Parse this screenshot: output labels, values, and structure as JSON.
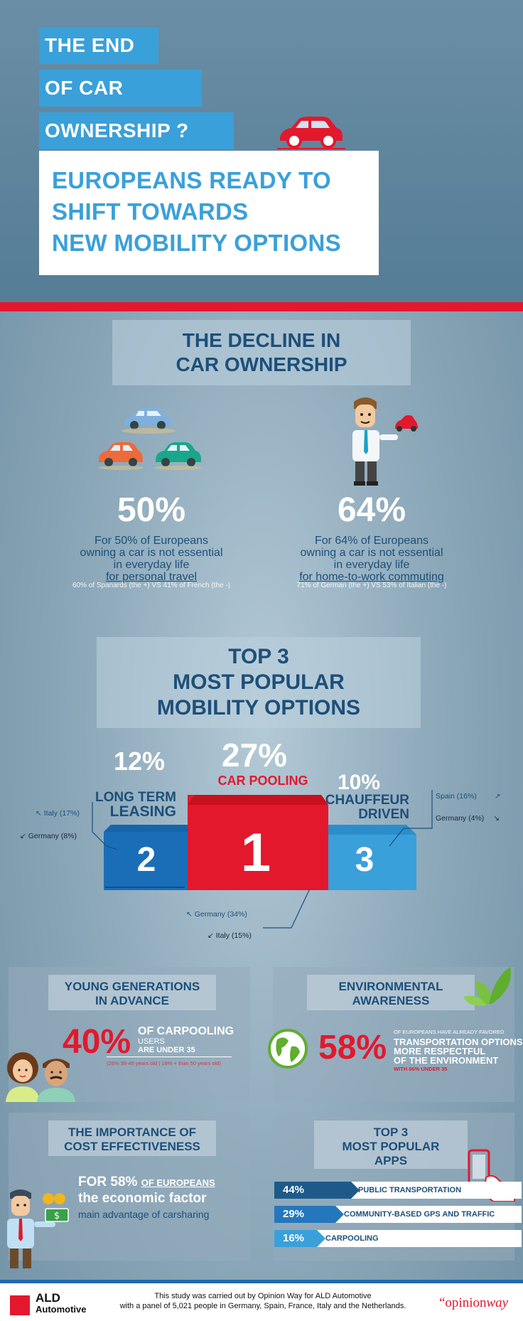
{
  "header": {
    "title_lines": [
      "THE END",
      "OF CAR",
      "OWNERSHIP ?"
    ],
    "subtitle_lines": [
      "EUROPEANS READY TO",
      "SHIFT TOWARDS",
      "NEW MOBILITY OPTIONS"
    ]
  },
  "decline": {
    "heading_lines": [
      "THE DECLINE IN",
      "CAR OWNERSHIP"
    ],
    "left": {
      "pct": "50%",
      "lines": [
        "For 50% of Europeans",
        "owning a car is not essential",
        "in everyday life"
      ],
      "underline": "for personal travel",
      "note": "60% of Spanards (the +) VS 41% of French (the -)"
    },
    "right": {
      "pct": "64%",
      "lines": [
        "For 64% of Europeans",
        "owning a car is not essential",
        "in everyday life"
      ],
      "underline": "for home-to-work commuting",
      "note": "71% of German (the +) VS 53% of Italian (the -)"
    }
  },
  "top3": {
    "heading_lines": [
      "TOP 3",
      "MOST POPULAR",
      "MOBILITY OPTIONS"
    ],
    "first": {
      "pct": "27%",
      "label": "CAR POOLING",
      "rank": "1",
      "notes": [
        "Germany (34%)",
        "Italy (15%)"
      ]
    },
    "second": {
      "pct": "12%",
      "label_lines": [
        "LONG TERM",
        "LEASING"
      ],
      "rank": "2",
      "notes": [
        "Italy (17%)",
        "Germany (8%)"
      ]
    },
    "third": {
      "pct": "10%",
      "label_lines": [
        "CHAUFFEUR",
        "DRIVEN"
      ],
      "rank": "3",
      "notes": [
        "Spain (16%)",
        "Germany (4%)"
      ]
    }
  },
  "young": {
    "heading_lines": [
      "YOUNG GENERATIONS",
      "IN ADVANCE"
    ],
    "pct": "40%",
    "text_big": "OF CARPOOLING",
    "text_small": "USERS",
    "text_under": "ARE UNDER 35",
    "note": "(26% 35-49 years old | 18% + than 50 years old)"
  },
  "env": {
    "heading_lines": [
      "ENVIRONMENTAL",
      "AWARENESS"
    ],
    "pct": "58%",
    "text_small": "OF EUROPEANS HAVE ALREADY FAVORED",
    "text_lines": [
      "TRANSPORTATION OPTIONS",
      "MORE RESPECTFUL",
      "OF THE ENVIRONMENT"
    ],
    "note": "WITH 66% UNDER 35"
  },
  "cost": {
    "heading_lines": [
      "THE IMPORTANCE OF",
      "COST EFFECTIVENESS"
    ],
    "line1_a": "FOR 58%",
    "line1_b": "OF EUROPEANS",
    "line2": "the economic factor",
    "line3": "main advantage of carsharing"
  },
  "apps": {
    "heading_lines": [
      "TOP 3",
      "MOST POPULAR",
      "APPS"
    ],
    "items": [
      {
        "pct": "44%",
        "label": "PUBLIC TRANSPORTATION",
        "color": "#1d5a8a"
      },
      {
        "pct": "29%",
        "label": "COMMUNITY-BASED GPS AND TRAFFIC",
        "color": "#2577bd"
      },
      {
        "pct": "16%",
        "label": "CARPOOLING",
        "color": "#3aa0d9"
      }
    ]
  },
  "footer": {
    "brand_line1": "ALD",
    "brand_line2": "Automotive",
    "study_line1": "This study was carried out by Opinion Way for ALD Automotive",
    "study_line2": "with a panel of 5,021 people in Germany, Spain, France, Italy and the Netherlands.",
    "partner_a": "“opinion",
    "partner_b": "way"
  },
  "colors": {
    "accent_blue": "#3aa0d9",
    "dark_blue": "#1d4f79",
    "red": "#e3182d"
  }
}
